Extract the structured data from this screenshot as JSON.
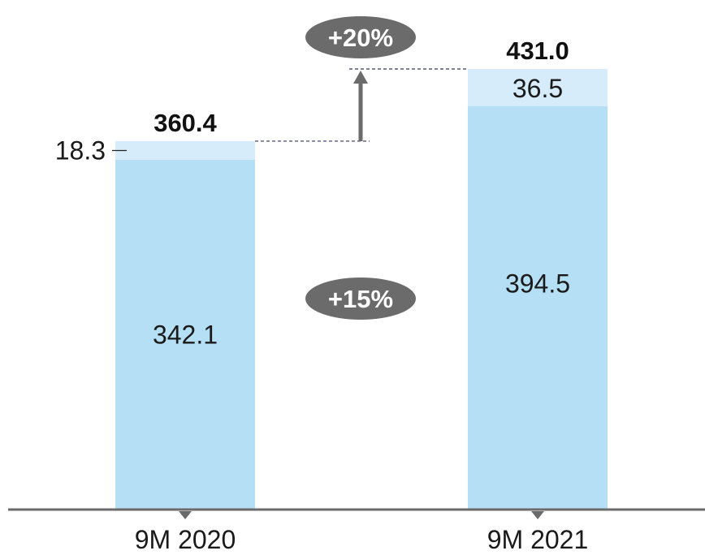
{
  "chart_data": {
    "type": "bar",
    "stacked": true,
    "categories": [
      "9M 2020",
      "9M 2021"
    ],
    "series": [
      {
        "values": [
          342.1,
          394.5
        ],
        "color": "#b5dff4"
      },
      {
        "values": [
          18.3,
          36.5
        ],
        "color": "#d6ecfa"
      }
    ],
    "totals": [
      "360.4",
      "431.0"
    ],
    "segment_labels": [
      [
        "342.1",
        "18.3"
      ],
      [
        "394.5",
        "36.5"
      ]
    ],
    "annotations": {
      "total_growth": "+20%",
      "base_growth": "+15%"
    },
    "ylim": [
      0,
      431.0
    ],
    "colors": {
      "axis": "#6b6b6b",
      "badge": "#6b6b6b",
      "arrow": "#6b6b6b",
      "connector": "#333366"
    }
  }
}
